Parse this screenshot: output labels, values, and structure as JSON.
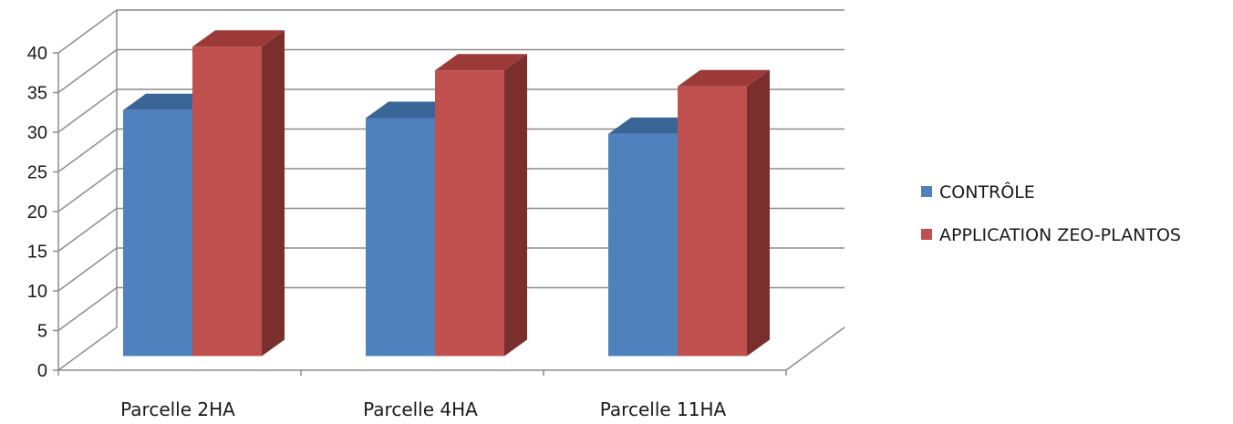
{
  "chart_data": {
    "type": "bar",
    "variant": "3d-clustered-column",
    "categories": [
      "Parcelle 2HA",
      "Parcelle 4HA",
      "Parcelle 11HA"
    ],
    "series": [
      {
        "name": "CONTRÔLE",
        "values": [
          31,
          30,
          28
        ],
        "color": "#4f81bd",
        "top_color": "#3a6597",
        "side_color": "#2f5584"
      },
      {
        "name": "APPLICATION ZEO-PLANTOS",
        "values": [
          39,
          36,
          34
        ],
        "color": "#c0504d",
        "top_color": "#9b3a37",
        "side_color": "#7b2f2d"
      }
    ],
    "ylim": [
      0,
      40
    ],
    "yticks": [
      "0",
      "5",
      "10",
      "15",
      "20",
      "25",
      "30",
      "35",
      "40"
    ],
    "ytick_values": [
      0,
      5,
      10,
      15,
      20,
      25,
      30,
      35,
      40
    ],
    "title": "",
    "xlabel": "",
    "ylabel": "",
    "grid": true,
    "legend_position": "right",
    "gridline_color": "#8c8c8c"
  }
}
